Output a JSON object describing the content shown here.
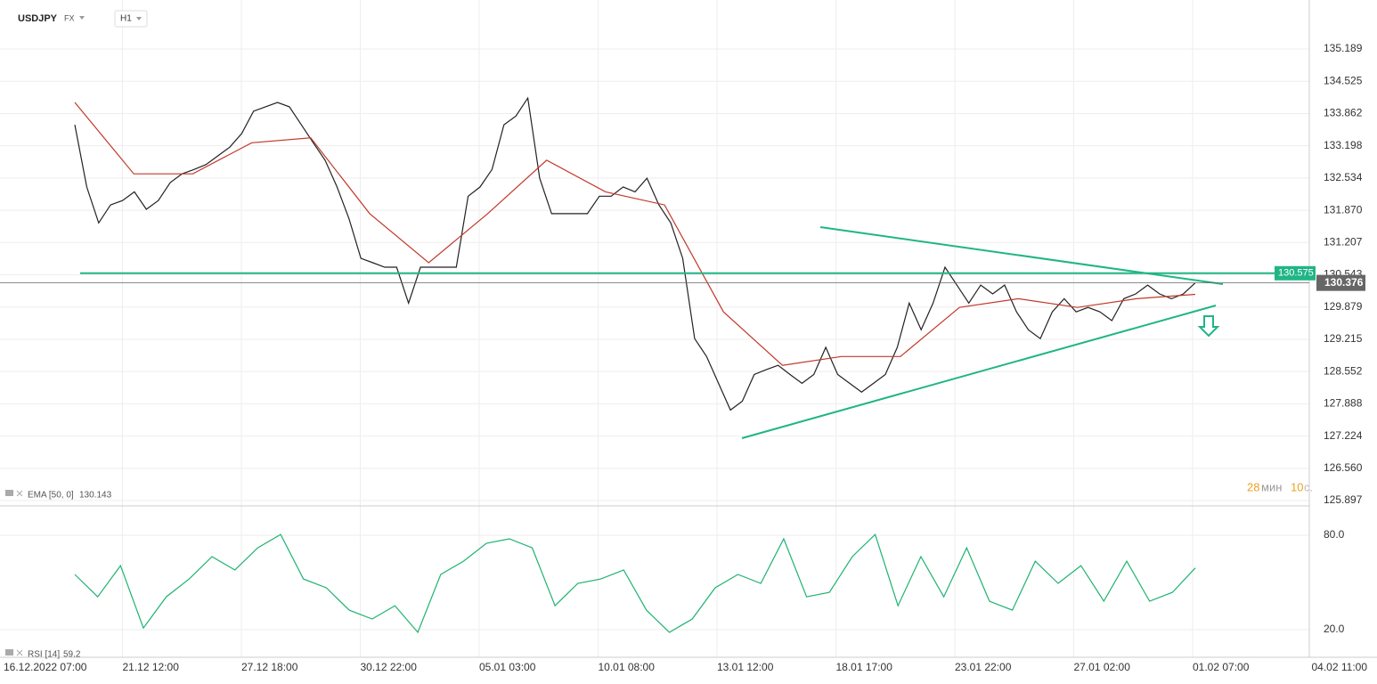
{
  "toolbar": {
    "symbol": "USDJPY",
    "market": "FX",
    "interval": "H1"
  },
  "countdown": {
    "minutes": "28",
    "minutes_unit": "мин",
    "seconds": "10",
    "seconds_unit": "с."
  },
  "time_axis": {
    "labels": [
      "16.12.2022 07:00",
      "21.12 12:00",
      "27.12 18:00",
      "30.12 22:00",
      "05.01 03:00",
      "10.01 08:00",
      "13.01 12:00",
      "18.01 17:00",
      "23.01 22:00",
      "27.01 02:00",
      "01.02 07:00",
      "04.02 11:00"
    ]
  },
  "chart_data": [
    {
      "type": "line",
      "ylim": [
        125.787,
        136.198
      ],
      "yticks": [
        135.189,
        134.525,
        133.862,
        133.198,
        132.534,
        {
          "value": 131.87,
          "label": "131.870"
        },
        131.207,
        130.543,
        129.879,
        129.215,
        128.552,
        127.888,
        127.224,
        {
          "value": 126.56,
          "label": "126.560"
        },
        125.897
      ],
      "grid": true,
      "level": 130.575,
      "last_price": 130.376,
      "indicator_value": 130.143,
      "series": [
        {
          "name": "USDJPY",
          "color": "#222222",
          "values": [
            133.63,
            132.35,
            131.61,
            131.98,
            132.07,
            132.25,
            131.89,
            132.07,
            132.44,
            132.62,
            132.71,
            132.81,
            132.99,
            133.17,
            133.45,
            133.91,
            134.0,
            134.09,
            134.0,
            133.63,
            133.26,
            132.9,
            132.35,
            131.7,
            130.88,
            130.79,
            130.7,
            130.7,
            129.96,
            130.7,
            130.7,
            130.7,
            130.7,
            132.16,
            132.35,
            132.71,
            133.63,
            133.81,
            134.18,
            132.53,
            131.8,
            131.8,
            131.8,
            131.8,
            132.16,
            132.16,
            132.35,
            132.25,
            132.53,
            131.98,
            131.61,
            130.88,
            129.23,
            128.86,
            128.31,
            127.76,
            127.94,
            128.49,
            128.59,
            128.68,
            128.49,
            128.31,
            128.49,
            129.05,
            128.49,
            128.31,
            128.13,
            128.31,
            128.49,
            129.05,
            129.96,
            129.41,
            129.96,
            130.7,
            130.33,
            129.96,
            130.33,
            130.15,
            130.33,
            129.78,
            129.41,
            129.23,
            129.78,
            130.05,
            129.78,
            129.87,
            129.78,
            129.6,
            130.05,
            130.15,
            130.33,
            130.15,
            130.05,
            130.15,
            130.376
          ]
        },
        {
          "name": "EMA [50, 0]",
          "color": "#c0392b",
          "values": [
            134.09,
            132.62,
            132.62,
            133.26,
            133.36,
            131.8,
            130.79,
            131.8,
            132.9,
            132.25,
            131.98,
            129.78,
            128.68,
            128.86,
            128.86,
            129.87,
            130.05,
            129.87,
            130.05,
            130.14
          ]
        }
      ]
    },
    {
      "type": "line",
      "ylim": [
        7,
        97.5
      ],
      "yticks": [
        {
          "value": 80,
          "label": "80.0"
        },
        {
          "value": 20,
          "label": "20.0"
        }
      ],
      "grid": true,
      "indicator_value": 59.2,
      "series": [
        {
          "name": "RSI [14]",
          "color": "#1db36e",
          "values": [
            55.1,
            40.9,
            60.7,
            21.1,
            40.9,
            52.2,
            66.4,
            57.9,
            72.0,
            80.5,
            52.2,
            46.6,
            32.4,
            26.8,
            35.2,
            18.3,
            55.1,
            63.5,
            74.9,
            77.7,
            72.0,
            35.2,
            49.4,
            52.2,
            57.9,
            32.4,
            18.3,
            26.8,
            46.6,
            55.1,
            49.4,
            77.7,
            40.9,
            43.7,
            66.4,
            80.5,
            35.2,
            66.4,
            40.9,
            72.0,
            38.1,
            32.4,
            63.5,
            49.4,
            60.7,
            38.1,
            63.5,
            38.1,
            43.7,
            59.2
          ]
        }
      ]
    }
  ]
}
